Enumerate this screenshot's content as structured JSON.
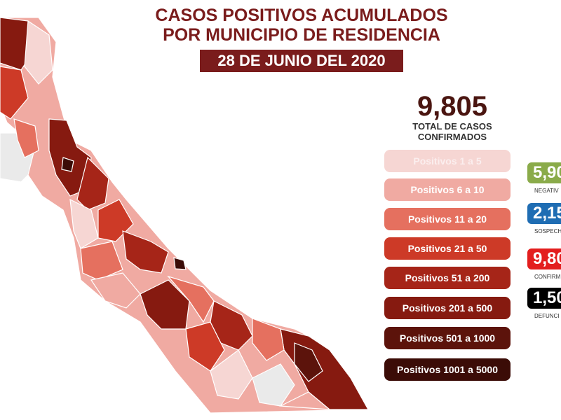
{
  "header": {
    "title_lines": [
      "CASOS POSITIVOS ACUMULADOS",
      "POR MUNICIPIO DE RESIDENCIA"
    ],
    "date": "28 DE JUNIO DEL 2020"
  },
  "summary": {
    "total": "9,805",
    "label_lines": [
      "TOTAL DE CASOS",
      "CONFIRMADOS"
    ]
  },
  "legend": [
    {
      "label": "Positivos 1 a 5",
      "color": "#f6d6d3"
    },
    {
      "label": "Positivos 6 a 10",
      "color": "#f0aaa2"
    },
    {
      "label": "Positivos 11 a 20",
      "color": "#e5705f"
    },
    {
      "label": "Positivos 21 a 50",
      "color": "#cd3a27"
    },
    {
      "label": "Positivos 51 a 200",
      "color": "#a62518"
    },
    {
      "label": "Positivos 201 a 500",
      "color": "#861a10"
    },
    {
      "label": "Positivos 501 a 1000",
      "color": "#5c130b"
    },
    {
      "label": "Positivos 1001 a 5000",
      "color": "#3b0c07"
    }
  ],
  "stats": [
    {
      "value": "5,90",
      "label": "NEGATIV",
      "color": "#8aab4a"
    },
    {
      "value": "2,15",
      "label": "SOSPECH",
      "color": "#1f6db3"
    },
    {
      "value": "9,80",
      "label": "CONFIRM",
      "color": "#e31e1e"
    },
    {
      "value": "1,50",
      "label": "DEFUNCI",
      "color": "#000000"
    }
  ]
}
